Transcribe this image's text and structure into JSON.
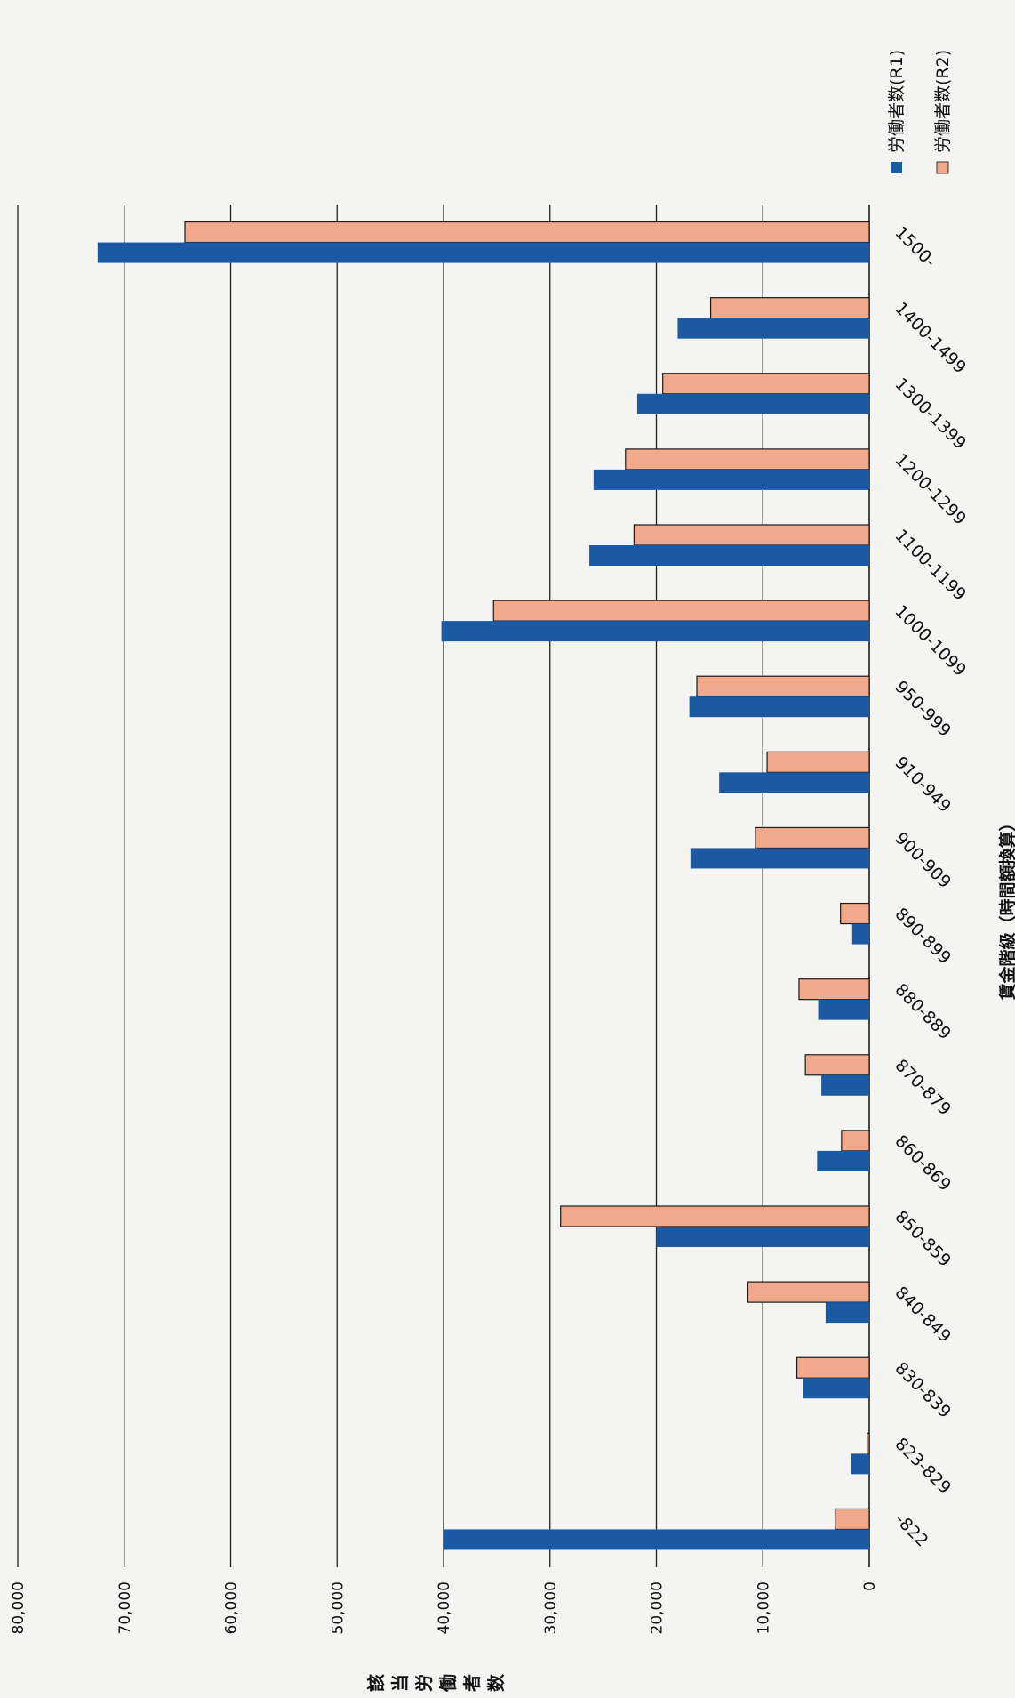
{
  "chart_data": {
    "type": "bar",
    "orientation": "vertical-bars-rotated-page",
    "categories": [
      "-822",
      "823-829",
      "830-839",
      "840-849",
      "850-859",
      "860-869",
      "870-879",
      "880-889",
      "890-899",
      "900-909",
      "910-949",
      "950-999",
      "1000-1099",
      "1100-1199",
      "1200-1299",
      "1300-1399",
      "1400-1499",
      "1500-"
    ],
    "series": [
      {
        "name": "労働者数(R1)",
        "color": "#1b5aa3",
        "values": [
          40000,
          1700,
          6200,
          4100,
          20000,
          4900,
          4500,
          4800,
          1600,
          16800,
          14100,
          16900,
          40200,
          26300,
          25900,
          21800,
          18000,
          72500
        ]
      },
      {
        "name": "労働者数(R2)",
        "color": "#f2a88a",
        "values": [
          3200,
          200,
          6800,
          11400,
          29000,
          2600,
          6000,
          6600,
          2700,
          10700,
          9600,
          16200,
          35300,
          22100,
          22900,
          19400,
          14900,
          64300
        ]
      }
    ],
    "value_ticks": [
      "0",
      "10,000",
      "20,000",
      "30,000",
      "40,000",
      "50,000",
      "60,000",
      "70,000",
      "80,000"
    ],
    "ylim": [
      0,
      80000
    ],
    "xlabel": "賃金階級（時間額換算）",
    "ylabel": "該当労働者数",
    "ylabel_chars": [
      "該",
      "当",
      "労",
      "働",
      "者",
      "数"
    ],
    "grid": true,
    "legend_position": "top-right"
  }
}
